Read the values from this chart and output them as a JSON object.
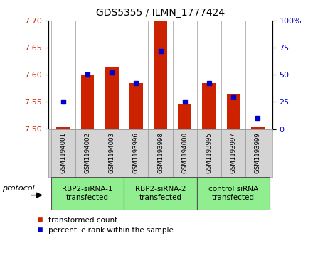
{
  "title": "GDS5355 / ILMN_1777424",
  "samples": [
    "GSM1194001",
    "GSM1194002",
    "GSM1194003",
    "GSM1193996",
    "GSM1193998",
    "GSM1194000",
    "GSM1193995",
    "GSM1193997",
    "GSM1193999"
  ],
  "red_values": [
    7.505,
    7.6,
    7.615,
    7.585,
    7.7,
    7.545,
    7.585,
    7.565,
    7.505
  ],
  "blue_values": [
    25,
    50,
    52,
    42,
    72,
    25,
    42,
    30,
    10
  ],
  "ylim_left": [
    7.5,
    7.7
  ],
  "ylim_right": [
    0,
    100
  ],
  "yticks_left": [
    7.5,
    7.55,
    7.6,
    7.65,
    7.7
  ],
  "yticks_right": [
    0,
    25,
    50,
    75,
    100
  ],
  "group_labels": [
    "RBP2-siRNA-1\ntransfected",
    "RBP2-siRNA-2\ntransfected",
    "control siRNA\ntransfected"
  ],
  "group_ranges": [
    [
      0,
      3
    ],
    [
      3,
      6
    ],
    [
      6,
      9
    ]
  ],
  "group_color": "#90ee90",
  "bar_color": "#cc2200",
  "dot_color": "#0000cc",
  "bar_width": 0.55,
  "sample_box_color": "#d4d4d4",
  "legend_red": "transformed count",
  "legend_blue": "percentile rank within the sample",
  "protocol_label": "protocol"
}
